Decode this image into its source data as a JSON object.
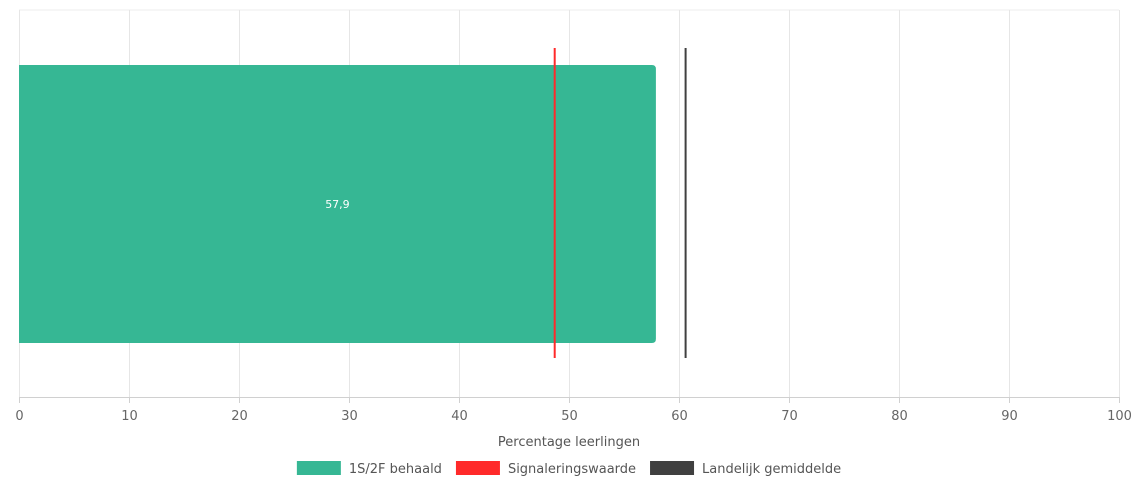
{
  "chart_data": {
    "type": "bar",
    "orientation": "horizontal",
    "xlabel": "Percentage leerlingen",
    "xlim": [
      0,
      100
    ],
    "x_ticks": [
      0,
      10,
      20,
      30,
      40,
      50,
      60,
      70,
      80,
      90,
      100
    ],
    "grid": true,
    "series": [
      {
        "name": "1S/2F behaald",
        "value": 57.9,
        "value_label": "57,9",
        "color": "#36b794"
      }
    ],
    "reference_lines": [
      {
        "name": "Signaleringswaarde",
        "value": 48.7,
        "color": "#ff2a2a"
      },
      {
        "name": "Landelijk gemiddelde",
        "value": 60.6,
        "color": "#404040"
      }
    ],
    "legend": {
      "position": "bottom",
      "items": [
        {
          "label": "1S/2F behaald",
          "color": "#36b794"
        },
        {
          "label": "Signaleringswaarde",
          "color": "#ff2a2a"
        },
        {
          "label": "Landelijk gemiddelde",
          "color": "#404040"
        }
      ]
    }
  }
}
